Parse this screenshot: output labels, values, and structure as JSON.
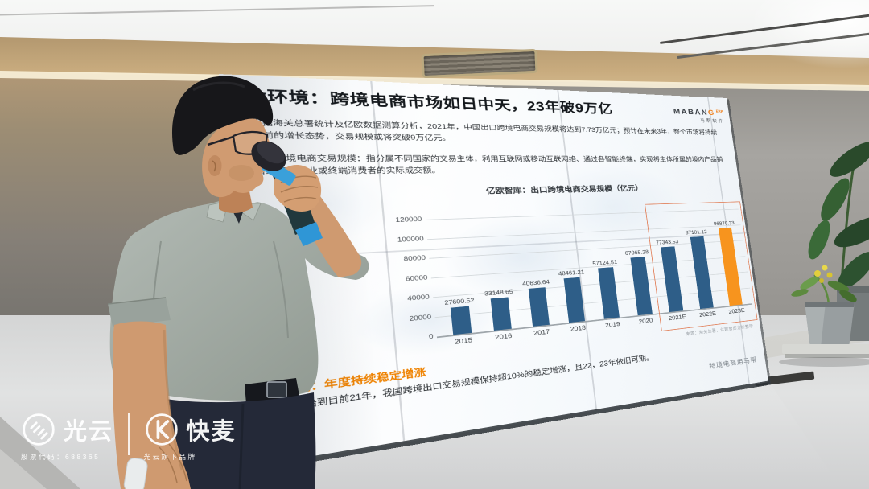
{
  "screen": {
    "slide": {
      "title": "大环境：跨境电商市场如日中天，23年破9万亿",
      "logo": {
        "prefix": "MABAN",
        "accent": "G",
        "suffix": "ERP",
        "subtitle": "马帮软件"
      },
      "paragraphs": [
        "根据海关总署统计及亿欧数据测算分析，2021年，中国出口跨境电商交易规模将达到7.73万亿元；预计在未来3年，整个市场将持续目前的增长态势，交易规模或将突破9万亿元。",
        "出口跨境电商交易规模：指分属不同国家的交易主体，利用互联网或移动互联网络、通过各智能终端，实现将主体所属的境内产品销售给境外企业或终端消费者的实际成交额。"
      ],
      "keyword_label": "关键词：年度持续稳定增涨",
      "keyword_body": "15年开始到目前21年，我国跨境出口交易规模保持超10%的稳定增涨，且22，23年依旧可期。",
      "source_note": "来源：海关总署，亿欧智库分析整理",
      "footer_right": "跨境电商用马帮"
    }
  },
  "chart_data": {
    "type": "bar",
    "title": "亿欧智库：出口跨境电商交易规模（亿元）",
    "categories": [
      "2015",
      "2016",
      "2017",
      "2018",
      "2019",
      "2020",
      "2021E",
      "2022E",
      "2023E"
    ],
    "values": [
      27600.52,
      33148.65,
      40636.64,
      48461.21,
      57124.51,
      67065.28,
      77343.53,
      87101.12,
      96870.33
    ],
    "ylim": [
      0,
      120000
    ],
    "ytick_step": 20000,
    "grid": true,
    "value_labels": true,
    "legend_position": "none",
    "bar_color": "#2e5e88",
    "highlight_index": 8,
    "highlight_color": "#f7941e",
    "highlight_box_indices": [
      6,
      7,
      8
    ]
  },
  "watermark": {
    "brand1": {
      "name": "光云",
      "caption": "股票代码：688365"
    },
    "brand2": {
      "name": "快麦",
      "caption": "光云旗下品牌"
    }
  },
  "icons": {
    "guangyun": "circle-double-slash-icon",
    "kuaimai": "circle-k-icon"
  },
  "colors": {
    "accent_orange": "#f08300",
    "bar_blue": "#2e5e88",
    "bar_highlight": "#f7941e",
    "keyword_orange": "#ef8200",
    "box_outline": "#e07a52",
    "slide_bg": "#f7fafc"
  }
}
